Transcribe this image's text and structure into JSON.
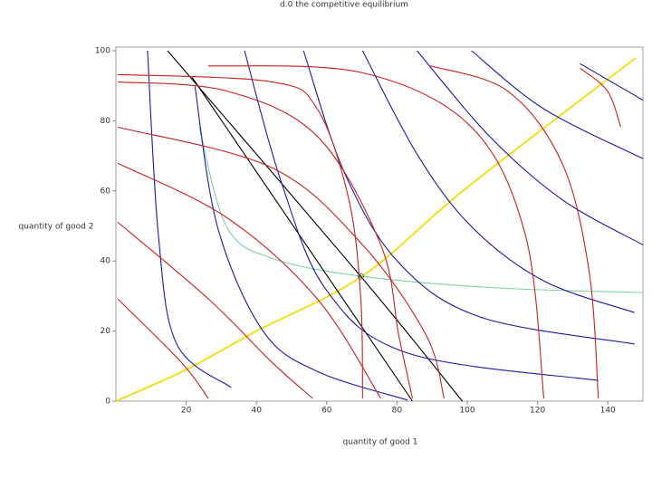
{
  "chart_data": {
    "type": "line",
    "title": "d.0 the competitive equilibrium",
    "x_label": "quantity of good 1",
    "y_label": "quantity of good 2",
    "xlim": [
      0,
      150
    ],
    "ylim": [
      0,
      100
    ],
    "xticks": [
      20,
      40,
      60,
      80,
      100,
      120,
      140
    ],
    "yticks": [
      0,
      20,
      40,
      60,
      80,
      100
    ],
    "series": [
      {
        "color": "#f0e020",
        "x": [
          0,
          20,
          40,
          70,
          100,
          148
        ],
        "values": [
          0,
          9,
          20,
          35.6,
          61,
          98
        ]
      },
      {
        "color": "#7fd0a0",
        "x": [
          23.7,
          31.5,
          44.4,
          70.2,
          108.9,
          150
        ],
        "values": [
          78.2,
          49.8,
          40.8,
          35.6,
          32.3,
          31
        ]
      },
      {
        "color": "#000000",
        "x": [
          14.7,
          69.7,
          98.6
        ],
        "values": [
          100,
          35.6,
          0
        ]
      },
      {
        "color": "#000000",
        "x": [
          21.7,
          84.4
        ],
        "values": [
          92.4,
          0
        ]
      },
      {
        "color": "#1a1aa0",
        "x": [
          9,
          12.1,
          17.3,
          32.8
        ],
        "values": [
          100,
          47.2,
          16.3,
          3.9
        ]
      },
      {
        "color": "#1a1aa0",
        "x": [
          22.5,
          28.9,
          41.8,
          57.3,
          83
        ],
        "values": [
          89.8,
          49.8,
          20.1,
          8.5,
          0.3
        ]
      },
      {
        "color": "#1a1aa0",
        "x": [
          36.6,
          47,
          59.9,
          83.1,
          137.3
        ],
        "values": [
          100,
          62.7,
          31.7,
          13.7,
          5.9
        ]
      },
      {
        "color": "#1a1aa0",
        "x": [
          53.4,
          65,
          80.5,
          103.7,
          147.6
        ],
        "values": [
          100,
          65.3,
          39.5,
          24,
          16.3
        ]
      },
      {
        "color": "#1a1aa0",
        "x": [
          70.2,
          85.7,
          101.2,
          121.8,
          147.6
        ],
        "values": [
          100,
          70.5,
          49.8,
          34.3,
          25.3
        ]
      },
      {
        "color": "#1a1aa0",
        "x": [
          85.7,
          106.3,
          127,
          150
        ],
        "values": [
          100,
          75.6,
          57.5,
          44.6
        ]
      },
      {
        "color": "#1a1aa0",
        "x": [
          101.2,
          121.8,
          150
        ],
        "values": [
          100,
          83.4,
          69.2
        ]
      },
      {
        "color": "#1a1aa0",
        "x": [
          132.1,
          150
        ],
        "values": [
          96.3,
          85.9
        ]
      },
      {
        "color": "#c82020",
        "x": [
          0.5,
          44.4,
          57.3,
          66.3,
          69.7,
          70.2
        ],
        "values": [
          93.2,
          91.1,
          83.4,
          57.5,
          29.2,
          0.8
        ]
      },
      {
        "color": "#c82020",
        "x": [
          0.5,
          31.5,
          57.3,
          75.4,
          80.5,
          84.4
        ],
        "values": [
          91.1,
          88.5,
          75.6,
          44.6,
          18.8,
          0.8
        ]
      },
      {
        "color": "#c82020",
        "x": [
          0.5,
          44.4,
          70.2,
          88.3,
          93.4
        ],
        "values": [
          78.2,
          66.6,
          44.6,
          18.8,
          0.8
        ]
      },
      {
        "color": "#c82020",
        "x": [
          0.5,
          31.5,
          57.3,
          75.4
        ],
        "values": [
          67.9,
          52.4,
          29.2,
          0.8
        ]
      },
      {
        "color": "#c82020",
        "x": [
          0.5,
          26.3,
          44.4,
          56
        ],
        "values": [
          51.1,
          29.2,
          11.1,
          0.8
        ]
      },
      {
        "color": "#c82020",
        "x": [
          0.5,
          18.6,
          26.3
        ],
        "values": [
          29.2,
          11.1,
          0.8
        ]
      },
      {
        "color": "#c82020",
        "x": [
          26.3,
          70.2,
          101.2,
          116.6,
          121.8
        ],
        "values": [
          95.7,
          93.7,
          78.2,
          47.2,
          0.8
        ]
      },
      {
        "color": "#c82020",
        "x": [
          89.5,
          111.5,
          127,
          134.7,
          137.3
        ],
        "values": [
          95.7,
          88.5,
          67.9,
          36.9,
          0.8
        ]
      },
      {
        "color": "#c82020",
        "x": [
          132.1,
          139.9,
          143.7
        ],
        "values": [
          95,
          88.5,
          78.2
        ]
      }
    ],
    "equilibrium": {
      "x": 69.7,
      "y": 35.6
    }
  }
}
